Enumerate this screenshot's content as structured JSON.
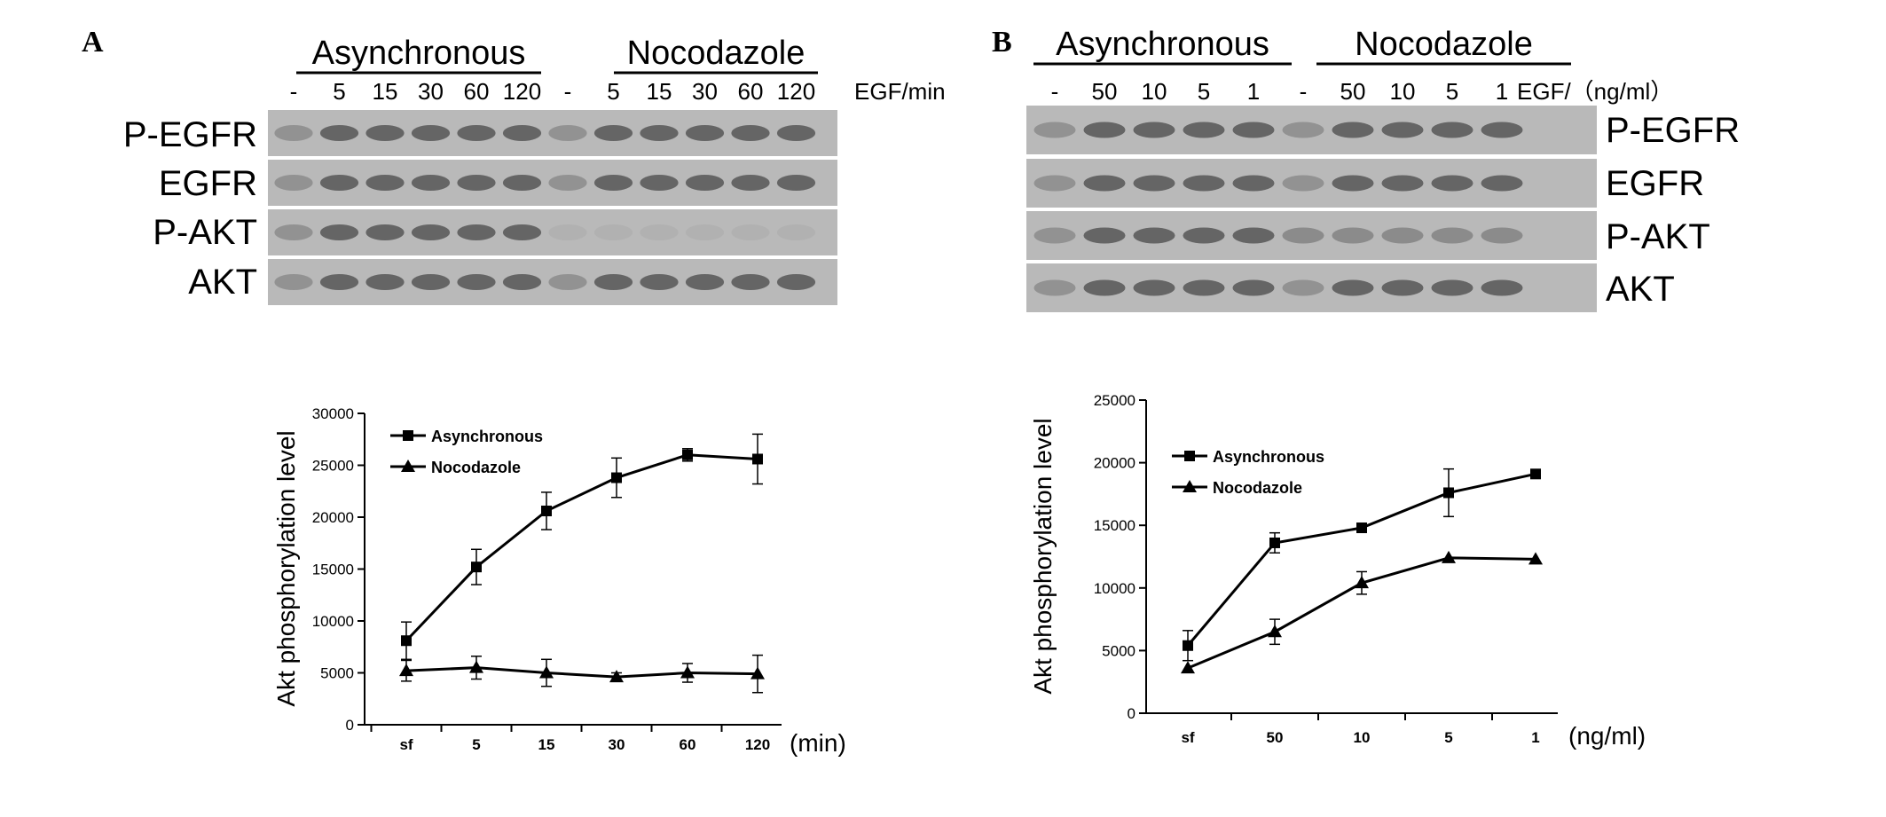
{
  "panels": [
    {
      "letter": "A",
      "blot": {
        "groups": [
          "Asynchronous",
          "Nocodazole"
        ],
        "lanes": [
          "-",
          "5",
          "15",
          "30",
          "60",
          "120",
          "-",
          "5",
          "15",
          "30",
          "60",
          "120"
        ],
        "condition_label": "EGF/min",
        "proteins": [
          "P-EGFR",
          "EGFR",
          "P-AKT",
          "AKT"
        ],
        "label_side": "left"
      },
      "chart_data": {
        "type": "line",
        "categories": [
          "sf",
          "5",
          "15",
          "30",
          "60",
          "120"
        ],
        "x_unit": "(min)",
        "ylabel": "Akt phosphorylation level",
        "ylim": [
          0,
          30000
        ],
        "yticks": [
          0,
          5000,
          10000,
          15000,
          20000,
          25000,
          30000
        ],
        "legend_position": "top-left",
        "series": [
          {
            "name": "Asynchronous",
            "marker": "square",
            "values": [
              8100,
              15200,
              20600,
              23800,
              26000,
              25600
            ],
            "errors": [
              1800,
              1700,
              1800,
              1900,
              600,
              2400
            ]
          },
          {
            "name": "Nocodazole",
            "marker": "triangle",
            "values": [
              5200,
              5500,
              5000,
              4600,
              5000,
              4900
            ],
            "errors": [
              1000,
              1100,
              1300,
              400,
              900,
              1800
            ]
          }
        ]
      }
    },
    {
      "letter": "B",
      "blot": {
        "groups": [
          "Asynchronous",
          "Nocodazole"
        ],
        "lanes": [
          "-",
          "50",
          "10",
          "5",
          "1",
          "-",
          "50",
          "10",
          "5",
          "1"
        ],
        "condition_label": "EGF/（ng/ml）",
        "proteins": [
          "P-EGFR",
          "EGFR",
          "P-AKT",
          "AKT"
        ],
        "label_side": "right"
      },
      "chart_data": {
        "type": "line",
        "categories": [
          "sf",
          "50",
          "10",
          "5",
          "1"
        ],
        "x_unit": "(ng/ml)",
        "ylabel": "Akt phosphorylation level",
        "ylim": [
          0,
          25000
        ],
        "yticks": [
          0,
          5000,
          10000,
          15000,
          20000,
          25000
        ],
        "legend_position": "top-left",
        "series": [
          {
            "name": "Asynchronous",
            "marker": "square",
            "values": [
              5400,
              13600,
              14800,
              17600,
              19100
            ],
            "errors": [
              1200,
              800,
              0,
              1900,
              0
            ]
          },
          {
            "name": "Nocodazole",
            "marker": "triangle",
            "values": [
              3600,
              6500,
              10400,
              12400,
              12300
            ],
            "errors": [
              0,
              1000,
              900,
              0,
              0
            ]
          }
        ]
      }
    }
  ],
  "colors": {
    "ink": "#000000",
    "blot_background": "#b9b9b9",
    "band": "#202020"
  }
}
